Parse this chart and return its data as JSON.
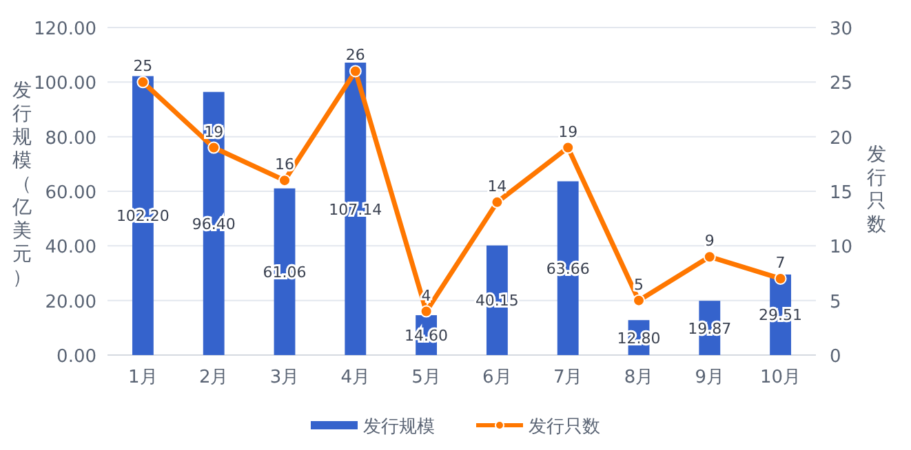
{
  "chart_data": {
    "type": "bar",
    "ylabel": "发行规模（亿美元）",
    "y2label": "发行只数",
    "categories": [
      "1月",
      "2月",
      "3月",
      "4月",
      "5月",
      "6月",
      "7月",
      "8月",
      "9月",
      "10月"
    ],
    "series": [
      {
        "name": "发行规模",
        "color": "#3563cc",
        "values": [
          102.2,
          96.4,
          61.06,
          107.14,
          14.6,
          40.15,
          63.66,
          12.8,
          19.87,
          29.51
        ],
        "value_labels": [
          "102.20",
          "96.40",
          "61.06",
          "107.14",
          "14.60",
          "40.15",
          "63.66",
          "12.80",
          "19.87",
          "29.51"
        ]
      },
      {
        "name": "发行只数",
        "type": "line",
        "axis": "y2",
        "color": "#ff7700",
        "marker": "circle",
        "values": [
          25,
          19,
          16,
          26,
          4,
          14,
          19,
          5,
          9,
          7
        ]
      }
    ],
    "ylim": [
      0,
      120
    ],
    "yticks": [
      {
        "value": 0,
        "label": "0.00"
      },
      {
        "value": 20,
        "label": "20.00"
      },
      {
        "value": 40,
        "label": "40.00"
      },
      {
        "value": 60,
        "label": "60.00"
      },
      {
        "value": 80,
        "label": "80.00"
      },
      {
        "value": 100,
        "label": "100.00"
      },
      {
        "value": 120,
        "label": "120.00"
      }
    ],
    "y2lim": [
      0,
      30
    ],
    "y2ticks": [
      0,
      5,
      10,
      15,
      20,
      25,
      30
    ],
    "grid": "y",
    "data_labels": true,
    "legend": "bottom"
  }
}
